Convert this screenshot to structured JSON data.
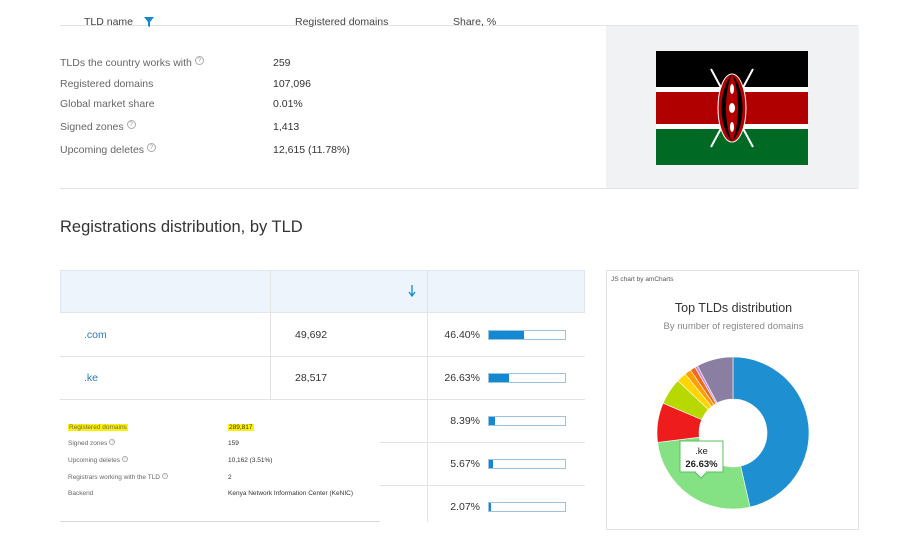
{
  "stats": [
    {
      "label": "TLDs the country works with",
      "value": "259",
      "help": true
    },
    {
      "label": "Registered domains",
      "value": "107,096",
      "help": false
    },
    {
      "label": "Global market share",
      "value": "0.01%",
      "help": false
    },
    {
      "label": "Signed zones",
      "value": "1,413",
      "help": true
    },
    {
      "label": "Upcoming deletes",
      "value": "12,615 (11.78%)",
      "help": true
    }
  ],
  "flag": {
    "country": "Kenya",
    "colors": {
      "black": "#000000",
      "red": "#b00000",
      "green": "#006a25",
      "white": "#ffffff"
    }
  },
  "section_title": "Registrations distribution, by TLD",
  "table": {
    "headers": {
      "tld": "TLD name",
      "registered": "Registered domains",
      "share": "Share, %"
    },
    "rows": [
      {
        "tld": ".com",
        "registered": "49,692",
        "share": "46.40%"
      },
      {
        "tld": ".ke",
        "registered": "28,517",
        "share": "26.63%"
      },
      {
        "tld": "",
        "registered": "",
        "share": "8.39%"
      },
      {
        "tld": "",
        "registered": "",
        "share": "5.67%"
      },
      {
        "tld": "",
        "registered": "",
        "share": "2.07%"
      }
    ]
  },
  "popup": {
    "rows": [
      {
        "label": "Registered domains",
        "value": "289,817",
        "highlight": true,
        "help": false
      },
      {
        "label": "Signed zones",
        "value": "159",
        "highlight": false,
        "help": true
      },
      {
        "label": "Upcoming deletes",
        "value": "10,162 (3.51%)",
        "highlight": false,
        "help": true
      },
      {
        "label": "Registrars working with the TLD",
        "value": "2",
        "highlight": false,
        "help": true
      },
      {
        "label": "Backend",
        "value": "Kenya Network Information Center (KeNIC)",
        "highlight": false,
        "help": false
      }
    ]
  },
  "chart_box": {
    "credit": "JS chart by amCharts",
    "title": "Top TLDs distribution",
    "subtitle": "By number of registered domains",
    "tooltip": {
      "name": ".ke",
      "value": "26.63%"
    }
  },
  "chart_data": {
    "type": "pie",
    "title": "Top TLDs distribution",
    "subtitle": "By number of registered domains",
    "slices": [
      {
        "name": ".com",
        "value": 46.4,
        "color": "#1e90d2"
      },
      {
        "name": ".ke",
        "value": 26.63,
        "color": "#84e184"
      },
      {
        "name": "",
        "value": 8.39,
        "color": "#ee1c1c"
      },
      {
        "name": "",
        "value": 5.67,
        "color": "#b7d800"
      },
      {
        "name": "",
        "value": 2.07,
        "color": "#ffd400"
      },
      {
        "name": "",
        "value": 1.4,
        "color": "#ff9e00"
      },
      {
        "name": "",
        "value": 1.1,
        "color": "#f06a1e"
      },
      {
        "name": "",
        "value": 0.6,
        "color": "#c78bde"
      },
      {
        "name": "",
        "value": 7.74,
        "color": "#8a7fa2"
      }
    ],
    "colors": {
      "accent": "#1488d0"
    }
  }
}
